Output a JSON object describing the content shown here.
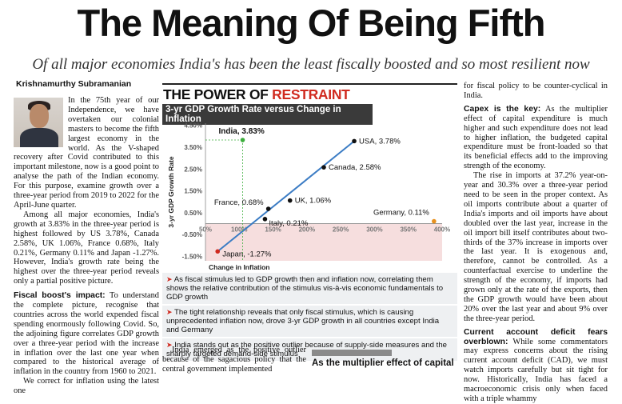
{
  "headline": "The Meaning Of Being Fifth",
  "deck": "Of all major economies India's has been the least fiscally boosted and so most resilient now",
  "byline": "Krishnamurthy Subramanian",
  "left_column": {
    "p1": "In the 75th year of our Independence, we have overtaken our colonial masters to become the fifth largest economy in the world. As the V-shaped recovery after Covid contributed to this important milestone, now is a good point to analyse the path of the Indian economy. For this purpose, examine growth over a three-year period from 2019 to 2022 for the April-June quarter.",
    "p2": "Among all major economies, India's growth at 3.83% in the three-year period is highest followed by US 3.78%, Canada 2.58%, UK 1.06%, France 0.68%, Italy 0.21%, Germany 0.11% and Japan -1.27%. However, India's growth rate being the highest over the three-year period reveals only a partial positive picture.",
    "p3_head": "Fiscal boost's impact:",
    "p3": " To understand the complete picture, recognise that countries across the world expended fiscal spending enormously following Covid. So, the adjoining figure correlates GDP growth over a three-year period with the increase in inflation over the last one year when compared to the historical average of inflation in the country from 1960 to 2021.",
    "p4": "We correct for inflation using the latest one"
  },
  "middle_column": {
    "p1": "India emerged as the positive outlier because of the sagacious policy that the central government implemented"
  },
  "box_head": "As the multiplier effect of capital",
  "right_column": {
    "p0": "for fiscal policy to be counter-cyclical in India.",
    "p1_head": "Capex is the key:",
    "p1": " As the multiplier effect of capital expenditure is much higher and such expenditure does not lead to higher inflation, the budgeted capital expenditure must be front-loaded so that its beneficial effects add to the improving strength of the economy.",
    "p2": "The rise in imports at 37.2% year-on-year and 30.3% over a three-year period need to be seen in the proper context. As oil imports contribute about a quarter of India's imports and oil imports have about doubled over the last year, increase in the oil import bill itself contributes about two-thirds of the 37% increase in imports over the last year. It is exogenous and, therefore, cannot be controlled. As a counterfactual exercise to underline the strength of the economy, if imports had grown only at the rate of the exports, then the GDP growth would have been about 20% over the last year and about 9% over the three-year period.",
    "p3_head": "Current account deficit fears overblown:",
    "p3": " While some commentators may express concerns about the rising current account deficit (CAD), we must watch imports carefully but sit tight for now. Historically, India has faced a macroeconomic crisis only when faced with a triple whammy"
  },
  "graphic": {
    "title_black": "THE POWER OF ",
    "title_red": "RESTRAINT",
    "subtitle": "3-yr GDP Growth Rate versus Change in Inflation",
    "notes": [
      "As fiscal stimulus led to GDP growth then and inflation now, correlating them shows the relative contribution of the stimulus vis-à-vis economic fundamentals to GDP growth",
      "The tight relationship reveals that only fiscal stimulus, which is causing unprecedented inflation now, drove 3-yr GDP growth in all countries except India and Germany",
      "India stands out as the positive outlier because of supply-side measures and the sharply targeted demand-side stimulus"
    ],
    "arrow_glyph": "➤"
  },
  "colors": {
    "accent_red": "#d02a1f",
    "line_blue": "#3b7cc4",
    "india_green": "#3cae3c",
    "germany_orange": "#e8901e",
    "negative_band": "#f6dede"
  },
  "chart_data": {
    "type": "scatter",
    "title": "",
    "xlabel": "Change in Inflation",
    "ylabel": "3-yr GDP Growth Rate",
    "x_ticks": [
      "50%",
      "100%",
      "150%",
      "200%",
      "250%",
      "300%",
      "350%",
      "400%"
    ],
    "y_ticks": [
      "4.50%",
      "3.50%",
      "2.50%",
      "1.50%",
      "0.50%",
      "-0.50%",
      "-1.50%"
    ],
    "xlim": [
      50,
      400
    ],
    "ylim": [
      -1.7,
      4.6
    ],
    "points": [
      {
        "label": "India, 3.83%",
        "x": 105,
        "y": 3.83,
        "color": "#3cae3c"
      },
      {
        "label": "USA, 3.78%",
        "x": 270,
        "y": 3.78,
        "color": "#111111"
      },
      {
        "label": "Canada, 2.58%",
        "x": 225,
        "y": 2.58,
        "color": "#111111"
      },
      {
        "label": "UK, 1.06%",
        "x": 175,
        "y": 1.06,
        "color": "#111111"
      },
      {
        "label": "France, 0.68%",
        "x": 143,
        "y": 0.68,
        "color": "#111111"
      },
      {
        "label": "Italy, 0.21%",
        "x": 138,
        "y": 0.21,
        "color": "#111111"
      },
      {
        "label": "Germany, 0.11%",
        "x": 388,
        "y": 0.11,
        "color": "#e8901e"
      },
      {
        "label": "Japan, -1.27%",
        "x": 68,
        "y": -1.27,
        "color": "#d02a1f"
      }
    ],
    "trendline": {
      "from": [
        68,
        -1.27
      ],
      "to": [
        270,
        3.78
      ]
    }
  }
}
